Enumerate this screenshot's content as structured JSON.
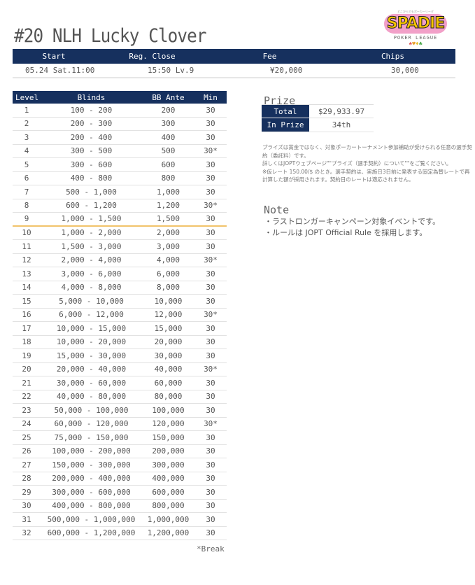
{
  "title": "#20 NLH Lucky Clover",
  "logo": {
    "text": "SPADIE",
    "subtitle": "POKER LEAGUE",
    "tagline": "どこからでもポーカーリーグ",
    "suits": "♠♥♦♣",
    "colors": {
      "yellow": "#f6c400",
      "pink": "#f2a0c8"
    }
  },
  "info": {
    "headers": [
      "Start",
      "Reg. Close",
      "Fee",
      "Chips"
    ],
    "values": [
      "05.24 Sat.11:00",
      "15:50 Lv.9",
      "¥20,000",
      "30,000"
    ]
  },
  "colors": {
    "header_bg": "#16305e",
    "reg_close_line": "#f1c36a"
  },
  "blinds": {
    "headers": [
      "Level",
      "Blinds",
      "BB Ante",
      "Min"
    ],
    "reg_close_after_level": 9,
    "rows": [
      [
        "1",
        "100 - 200",
        "200",
        "30"
      ],
      [
        "2",
        "200 - 300",
        "300",
        "30"
      ],
      [
        "3",
        "200 - 400",
        "400",
        "30"
      ],
      [
        "4",
        "300 - 500",
        "500",
        "30*"
      ],
      [
        "5",
        "300 - 600",
        "600",
        "30"
      ],
      [
        "6",
        "400 - 800",
        "800",
        "30"
      ],
      [
        "7",
        "500 - 1,000",
        "1,000",
        "30"
      ],
      [
        "8",
        "600 - 1,200",
        "1,200",
        "30*"
      ],
      [
        "9",
        "1,000 - 1,500",
        "1,500",
        "30"
      ],
      [
        "10",
        "1,000 - 2,000",
        "2,000",
        "30"
      ],
      [
        "11",
        "1,500 - 3,000",
        "3,000",
        "30"
      ],
      [
        "12",
        "2,000 - 4,000",
        "4,000",
        "30*"
      ],
      [
        "13",
        "3,000 - 6,000",
        "6,000",
        "30"
      ],
      [
        "14",
        "4,000 - 8,000",
        "8,000",
        "30"
      ],
      [
        "15",
        "5,000 - 10,000",
        "10,000",
        "30"
      ],
      [
        "16",
        "6,000 - 12,000",
        "12,000",
        "30*"
      ],
      [
        "17",
        "10,000 - 15,000",
        "15,000",
        "30"
      ],
      [
        "18",
        "10,000 - 20,000",
        "20,000",
        "30"
      ],
      [
        "19",
        "15,000 - 30,000",
        "30,000",
        "30"
      ],
      [
        "20",
        "20,000 - 40,000",
        "40,000",
        "30*"
      ],
      [
        "21",
        "30,000 - 60,000",
        "60,000",
        "30"
      ],
      [
        "22",
        "40,000 - 80,000",
        "80,000",
        "30"
      ],
      [
        "23",
        "50,000 - 100,000",
        "100,000",
        "30"
      ],
      [
        "24",
        "60,000 - 120,000",
        "120,000",
        "30*"
      ],
      [
        "25",
        "75,000 - 150,000",
        "150,000",
        "30"
      ],
      [
        "26",
        "100,000 - 200,000",
        "200,000",
        "30"
      ],
      [
        "27",
        "150,000 - 300,000",
        "300,000",
        "30"
      ],
      [
        "28",
        "200,000 - 400,000",
        "400,000",
        "30"
      ],
      [
        "29",
        "300,000 - 600,000",
        "600,000",
        "30"
      ],
      [
        "30",
        "400,000 - 800,000",
        "800,000",
        "30"
      ],
      [
        "31",
        "500,000 - 1,000,000",
        "1,000,000",
        "30"
      ],
      [
        "32",
        "600,000 - 1,200,000",
        "1,200,000",
        "30"
      ]
    ],
    "break_note": "*Break"
  },
  "prize": {
    "title": "Prize",
    "total_label": "Total",
    "total_value": "$29,933.97",
    "in_prize_label": "In Prize",
    "in_prize_value": "34th",
    "disclaimer": [
      "プライズは賞金ではなく、対象ポーカートーナメント参加補助が受けられる任意の選手契約（委託料）です。",
      "詳しくはJOPTウェブページ\"\"プライズ（選手契約）について\"\"をご覧ください。",
      "※仮レート 150.00/$ のとき。選手契約は、実施日3日前に発表する固定為替レートで再計算した額が採用されます。契約日のレートは適応されません。"
    ]
  },
  "note": {
    "title": "Note",
    "items": [
      "・ラストロンガーキャンペーン対象イベントです。",
      "・ルールは JOPT Official Rule を採用します。"
    ]
  }
}
